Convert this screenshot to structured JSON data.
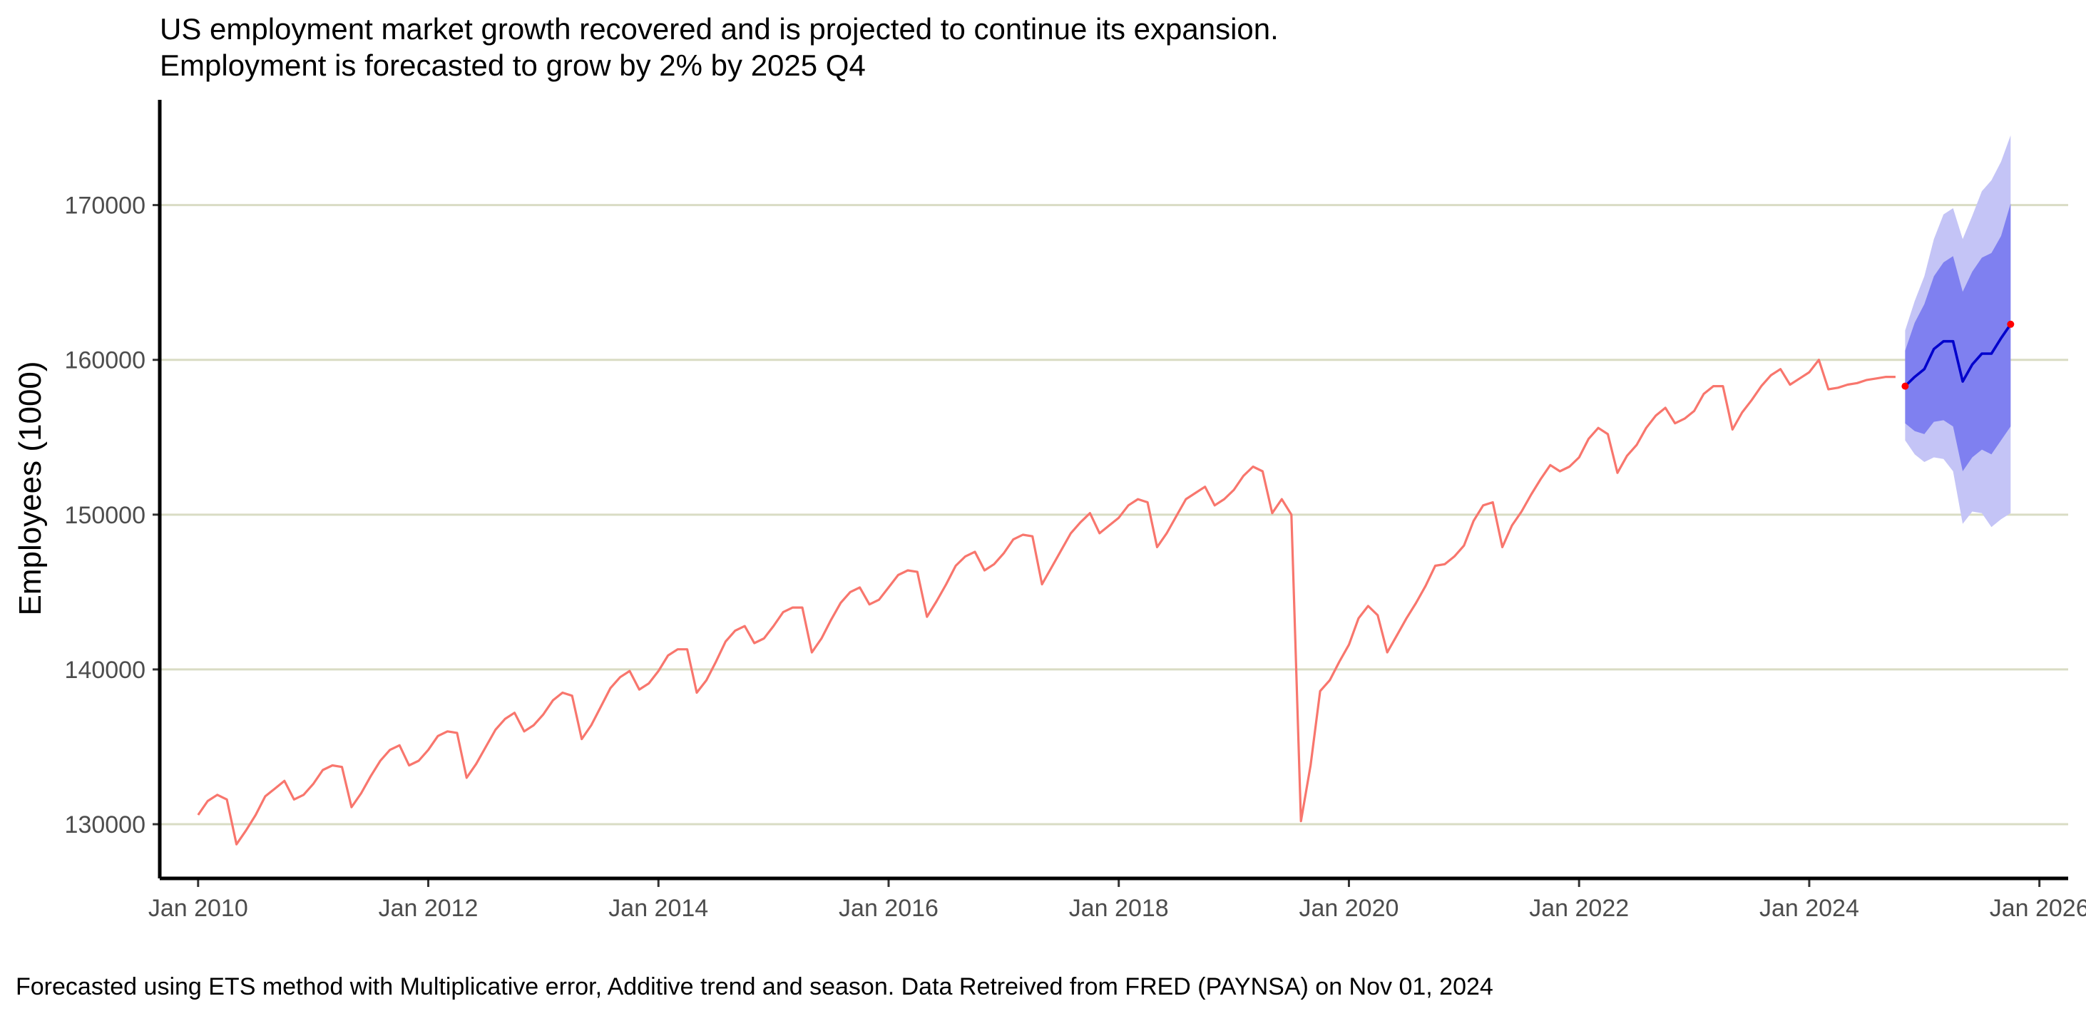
{
  "chart_data": {
    "type": "line",
    "title": "US employment market growth recovered and is projected to continue its expansion.",
    "subtitle": "Employment is forecasted to grow by 2% by 2025 Q4",
    "ylabel": "Employees (1000)",
    "xlabel": "",
    "caption": "Forecasted using ETS method with Multiplicative error, Additive trend and season. Data Retreived from FRED (PAYNSA) on Nov 01, 2024",
    "ylim": [
      126500,
      176800
    ],
    "xlim": [
      "2009-09",
      "2026-04"
    ],
    "y_ticks": [
      130000,
      140000,
      150000,
      160000,
      170000
    ],
    "y_tick_labels": [
      "130000",
      "140000",
      "150000",
      "160000",
      "170000"
    ],
    "x_ticks": [
      "2010-01",
      "2012-01",
      "2014-01",
      "2016-01",
      "2018-01",
      "2020-01",
      "2022-01",
      "2024-01",
      "2026-01"
    ],
    "x_tick_labels": [
      "Jan 2010",
      "Jan 2012",
      "Jan 2014",
      "Jan 2016",
      "Jan 2018",
      "Jan 2020",
      "Jan 2022",
      "Jan 2024",
      "Jan 2026"
    ],
    "grid": "horizontal",
    "colors": {
      "actual": "#f8766d",
      "forecast": "#0000cc",
      "pi80": "#7f80f0",
      "pi95": "#c4c4f6",
      "endpoint": "#ff0000",
      "grid": "#d9dcc4"
    },
    "series": [
      {
        "start": "2010-01",
        "frequency": "monthly",
        "values": [
          130600,
          131500,
          131900,
          131600,
          128700,
          129600,
          130600,
          131800,
          132300,
          132800,
          131600,
          131900,
          132600,
          133500,
          133800,
          133700,
          131100,
          132000,
          133100,
          134100,
          134800,
          135100,
          133800,
          134100,
          134800,
          135700,
          136000,
          135900,
          133000,
          133900,
          135000,
          136100,
          136800,
          137200,
          136000,
          136400,
          137100,
          138000,
          138500,
          138300,
          135500,
          136400,
          137600,
          138800,
          139500,
          139900,
          138700,
          139100,
          139900,
          140900,
          141300,
          141300,
          138500,
          139300,
          140500,
          141800,
          142500,
          142800,
          141700,
          142000,
          142800,
          143700,
          144000,
          144000,
          141100,
          142000,
          143200,
          144300,
          145000,
          145300,
          144200,
          144500,
          145300,
          146100,
          146400,
          146300,
          143400,
          144400,
          145500,
          146700,
          147300,
          147600,
          146400,
          146800,
          147500,
          148400,
          148700,
          148600,
          145500,
          146600,
          147700,
          148800,
          149500,
          150100,
          148800,
          149300,
          149800,
          150600,
          151000,
          150800,
          147900,
          148800,
          149900,
          151000,
          151400,
          151800,
          150600,
          151000,
          151600,
          152500,
          153100,
          152800,
          150100,
          151000,
          150000,
          130200,
          133800,
          138600,
          139300,
          140500,
          141600,
          143300,
          144100,
          143500,
          141100,
          142200,
          143300,
          144300,
          145400,
          146700,
          146800,
          147300,
          148000,
          149600,
          150600,
          150800,
          147900,
          149300,
          150200,
          151300,
          152300,
          153200,
          152800,
          153100,
          153700,
          154900,
          155600,
          155200,
          152700,
          153800,
          154500,
          155600,
          156400,
          156900,
          155900,
          156200,
          156700,
          157800,
          158300,
          158300,
          155500,
          156600,
          157400,
          158300,
          159000,
          159400,
          158400,
          158800,
          159200,
          160000,
          158100,
          158200,
          158400,
          158500,
          158700,
          158800,
          158900,
          158900
        ]
      },
      {
        "name": "forecast",
        "start": "2024-11",
        "frequency": "monthly",
        "values": [
          158300,
          158900,
          159400,
          160700,
          161200,
          161200,
          158600,
          159700,
          160400,
          160400,
          161400,
          162300
        ],
        "lo80": [
          155900,
          155400,
          155200,
          156000,
          156100,
          155700,
          152800,
          153700,
          154200,
          153900,
          154800,
          155700
        ],
        "hi80": [
          160600,
          162400,
          163600,
          165400,
          166300,
          166700,
          164400,
          165700,
          166600,
          166900,
          168000,
          170100
        ],
        "lo95": [
          154800,
          153900,
          153400,
          153700,
          153600,
          152800,
          149400,
          150200,
          150100,
          149200,
          149700,
          150100
        ],
        "hi95": [
          161900,
          163800,
          165400,
          167800,
          169400,
          169800,
          167800,
          169300,
          170900,
          171600,
          172800,
          174500
        ]
      }
    ]
  }
}
